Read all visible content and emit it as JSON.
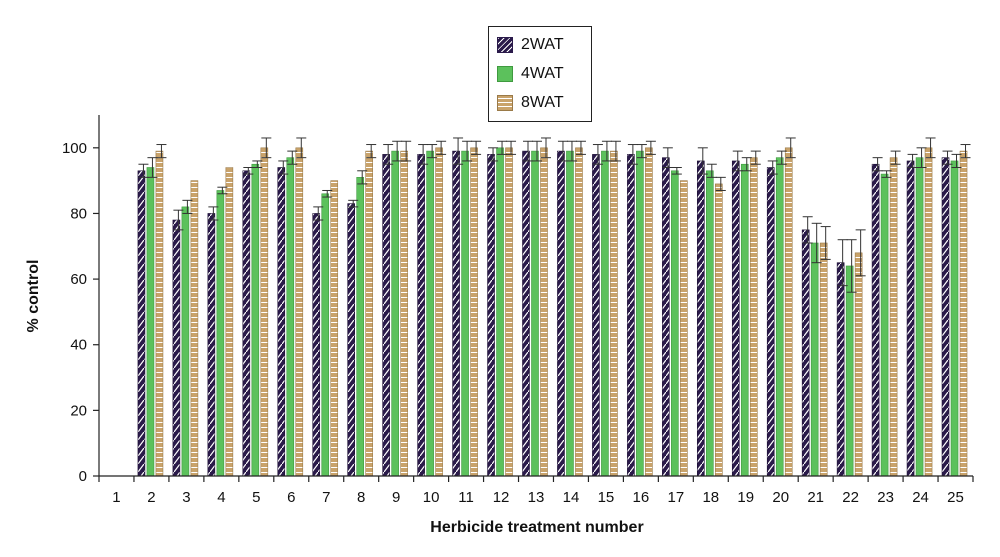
{
  "chart_data": {
    "type": "bar",
    "xlabel": "Herbicide treatment number",
    "ylabel": "% control",
    "ylim": [
      0,
      110
    ],
    "yticks": [
      0,
      20,
      40,
      60,
      80,
      100
    ],
    "categories": [
      "1",
      "2",
      "3",
      "4",
      "5",
      "6",
      "7",
      "8",
      "9",
      "10",
      "11",
      "12",
      "13",
      "14",
      "15",
      "16",
      "17",
      "18",
      "19",
      "20",
      "21",
      "22",
      "23",
      "24",
      "25"
    ],
    "legend_position": "top-center",
    "series": [
      {
        "name": "2WAT",
        "color": "#2a1a4a",
        "values": [
          0,
          93,
          78,
          80,
          93,
          94,
          80,
          83,
          98,
          98,
          99,
          98,
          99,
          99,
          98,
          98,
          97,
          96,
          96,
          94,
          75,
          65,
          95,
          96,
          97
        ],
        "errors": [
          0,
          2,
          3,
          2,
          1,
          2,
          2,
          1,
          3,
          3,
          4,
          2,
          3,
          3,
          3,
          3,
          3,
          4,
          3,
          2,
          4,
          7,
          2,
          2,
          2
        ]
      },
      {
        "name": "4WAT",
        "color": "#5cc15c",
        "values": [
          0,
          94,
          82,
          87,
          95,
          97,
          86,
          91,
          99,
          99,
          99,
          100,
          99,
          99,
          99,
          99,
          93,
          93,
          95,
          97,
          71,
          64,
          92,
          97,
          96
        ],
        "errors": [
          0,
          3,
          2,
          1,
          1,
          2,
          1,
          2,
          3,
          2,
          3,
          2,
          3,
          3,
          3,
          2,
          1,
          2,
          2,
          2,
          6,
          8,
          1,
          3,
          2
        ]
      },
      {
        "name": "8WAT",
        "color": "#c9a36b",
        "values": [
          0,
          99,
          90,
          94,
          100,
          100,
          90,
          99,
          99,
          100,
          100,
          100,
          100,
          100,
          99,
          100,
          90,
          89,
          97,
          100,
          71,
          68,
          97,
          100,
          99
        ],
        "errors": [
          0,
          2,
          0,
          0,
          3,
          3,
          0,
          2,
          3,
          2,
          2,
          2,
          3,
          2,
          3,
          2,
          0,
          2,
          2,
          3,
          5,
          7,
          2,
          3,
          2
        ]
      }
    ]
  }
}
